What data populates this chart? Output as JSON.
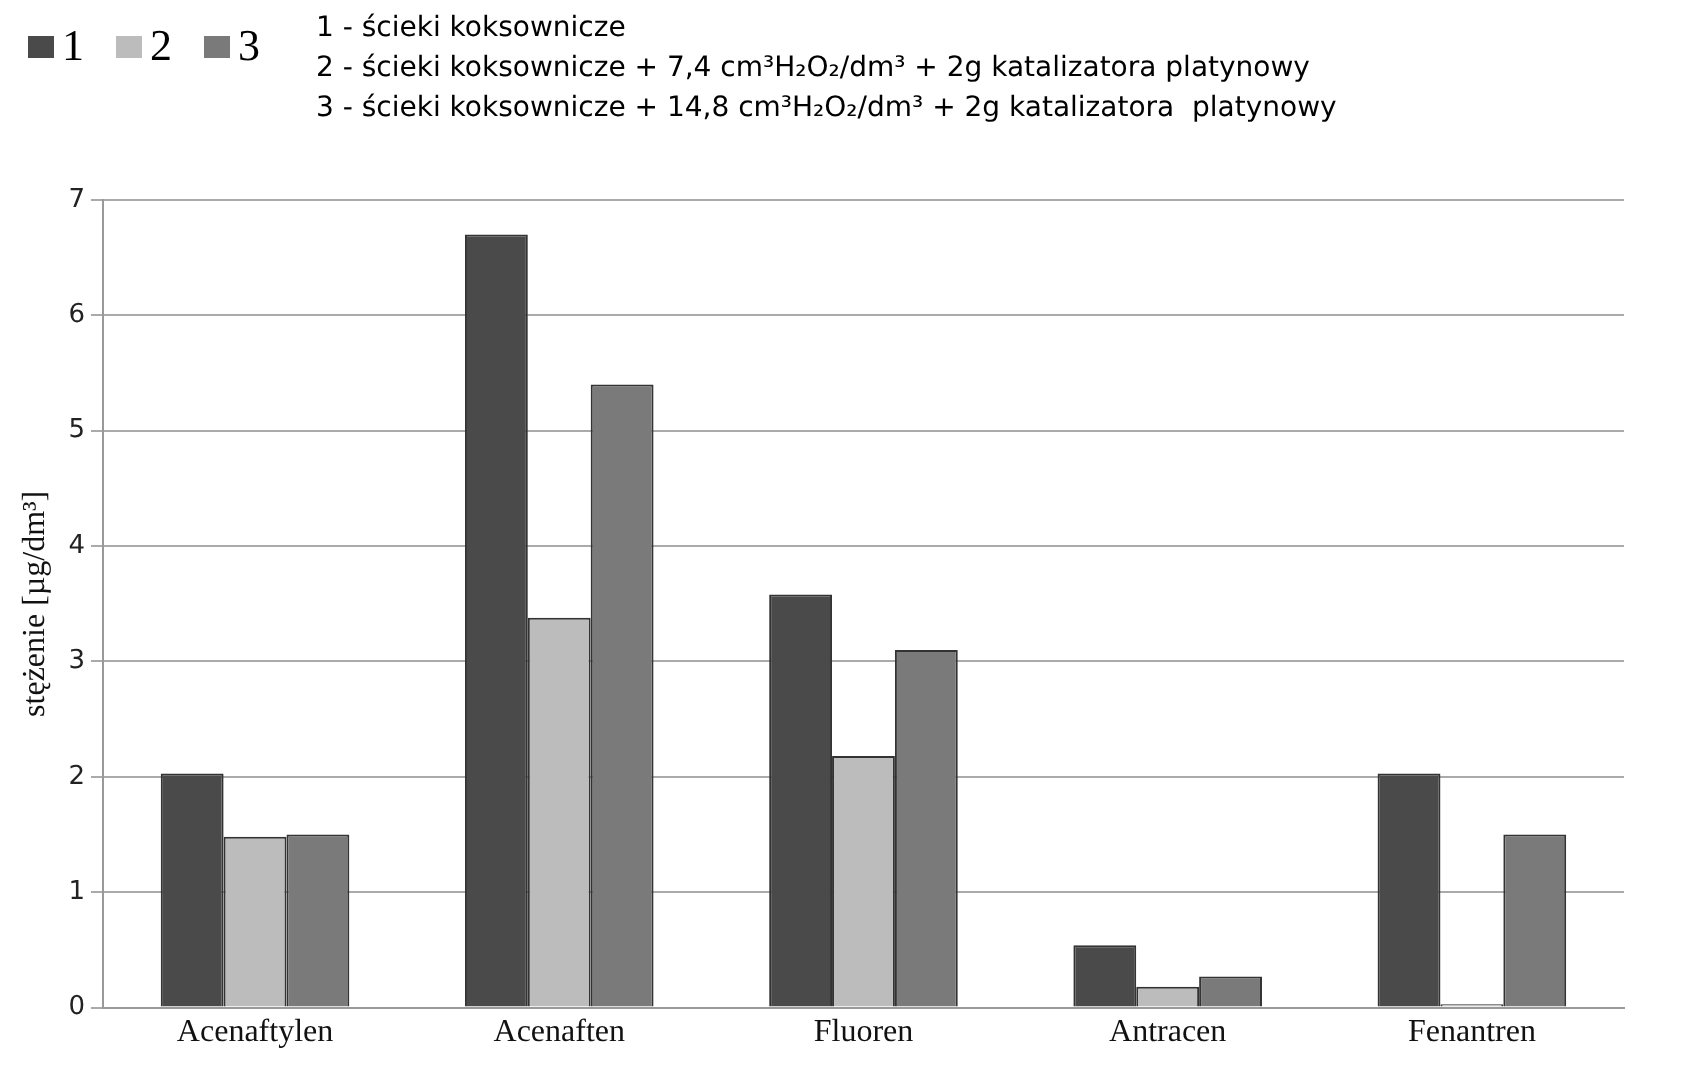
{
  "chart_data": {
    "type": "bar",
    "ylabel": "stężenie [µg/dm³]",
    "categories": [
      "Acenaftylen",
      "Acenaften",
      "Fluoren",
      "Antracen",
      "Fenantren"
    ],
    "series": [
      {
        "name": "1",
        "color": "#4a4a4a",
        "values": [
          2.03,
          6.7,
          3.58,
          0.54,
          2.03
        ]
      },
      {
        "name": "2",
        "color": "#bcbcbc",
        "values": [
          1.48,
          3.38,
          2.18,
          0.18,
          0.03
        ]
      },
      {
        "name": "3",
        "color": "#7a7a7a",
        "values": [
          1.5,
          5.4,
          3.1,
          0.27,
          1.5
        ]
      }
    ],
    "annotations": [
      "1 - ścieki koksownicze",
      "2 - ścieki koksownicze + 7,4 cm³H₂O₂/dm³ + 2g katalizatora platynowy",
      "3 - ścieki koksownicze + 14,8 cm³H₂O₂/dm³ + 2g katalizatora  platynowy"
    ],
    "ylim": [
      0,
      7
    ],
    "yticks": [
      0,
      1,
      2,
      3,
      4,
      5,
      6,
      7
    ],
    "grid": "y",
    "legend": "top left"
  }
}
